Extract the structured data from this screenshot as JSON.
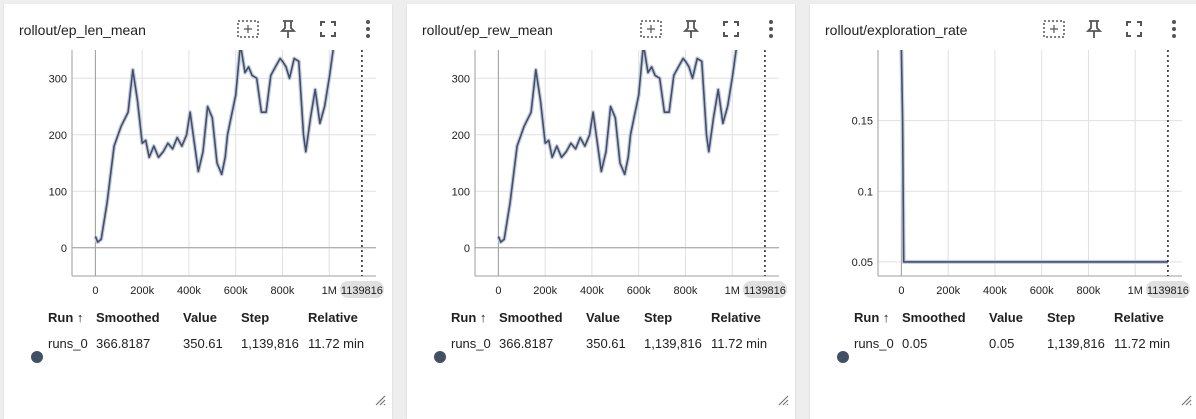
{
  "cards": [
    {
      "title": "rollout/ep_len_mean",
      "y_ticks": [
        "300",
        "200",
        "100",
        "0"
      ],
      "x_ticks": [
        "0",
        "200k",
        "400k",
        "600k",
        "800k",
        "1M"
      ],
      "step_marker": "1139816",
      "table": {
        "headers": [
          "Run ↑",
          "Smoothed",
          "Value",
          "Step",
          "Relative"
        ],
        "row": {
          "run": "runs_0",
          "smoothed": "366.8187",
          "value": "350.61",
          "step": "1,139,816",
          "relative": "11.72 min"
        }
      }
    },
    {
      "title": "rollout/ep_rew_mean",
      "y_ticks": [
        "300",
        "200",
        "100",
        "0"
      ],
      "x_ticks": [
        "0",
        "200k",
        "400k",
        "600k",
        "800k",
        "1M"
      ],
      "step_marker": "1139816",
      "table": {
        "headers": [
          "Run ↑",
          "Smoothed",
          "Value",
          "Step",
          "Relative"
        ],
        "row": {
          "run": "runs_0",
          "smoothed": "366.8187",
          "value": "350.61",
          "step": "1,139,816",
          "relative": "11.72 min"
        }
      }
    },
    {
      "title": "rollout/exploration_rate",
      "y_ticks": [
        "0.15",
        "0.1",
        "0.05"
      ],
      "x_ticks": [
        "0",
        "200k",
        "400k",
        "600k",
        "800k",
        "1M"
      ],
      "step_marker": "1139816",
      "table": {
        "headers": [
          "Run ↑",
          "Smoothed",
          "Value",
          "Step",
          "Relative"
        ],
        "row": {
          "run": "runs_0",
          "smoothed": "0.05",
          "value": "0.05",
          "step": "1,139,816",
          "relative": "11.72 min"
        }
      }
    }
  ],
  "icons": {
    "fit": "fit-to-data-icon",
    "pin": "pin-icon",
    "fullscreen": "fullscreen-icon",
    "more": "more-vert-icon",
    "resize": "resize-handle-icon"
  },
  "colors": {
    "line": "#425066",
    "line_halo": "#c5cbe0",
    "grid": "#e0e0e0",
    "axis": "#9e9e9e",
    "background": "#eeeeee"
  },
  "chart_data": [
    {
      "type": "line",
      "title": "rollout/ep_len_mean",
      "series": [
        {
          "name": "runs_0",
          "x": [
            0,
            10000,
            25000,
            50000,
            80000,
            110000,
            140000,
            160000,
            180000,
            200000,
            215000,
            230000,
            250000,
            270000,
            290000,
            310000,
            330000,
            350000,
            370000,
            390000,
            405000,
            420000,
            440000,
            460000,
            480000,
            500000,
            520000,
            540000,
            555000,
            565000,
            580000,
            600000,
            620000,
            640000,
            655000,
            670000,
            690000,
            710000,
            730000,
            750000,
            770000,
            790000,
            800000,
            815000,
            830000,
            850000,
            870000,
            890000,
            900000,
            920000,
            940000,
            960000,
            980000,
            1000000,
            1020000,
            1040000,
            1060000,
            1070000
          ],
          "values": [
            20,
            10,
            15,
            80,
            180,
            215,
            240,
            315,
            260,
            185,
            190,
            160,
            180,
            160,
            170,
            185,
            175,
            195,
            180,
            200,
            240,
            195,
            135,
            170,
            250,
            230,
            150,
            130,
            160,
            200,
            230,
            270,
            360,
            310,
            320,
            305,
            300,
            240,
            240,
            305,
            320,
            335,
            330,
            320,
            300,
            335,
            330,
            200,
            170,
            230,
            280,
            220,
            250,
            300,
            360,
            360,
            360,
            360
          ]
        }
      ],
      "x_ticks": [
        "0",
        "200k",
        "400k",
        "600k",
        "800k",
        "1M"
      ],
      "y_ticks": [
        "0",
        "100",
        "200",
        "300"
      ],
      "xlim": [
        -100000,
        1200000
      ],
      "ylim": [
        -50,
        350
      ],
      "step_marker": 1139816
    },
    {
      "type": "line",
      "title": "rollout/ep_rew_mean",
      "series": [
        {
          "name": "runs_0",
          "x": [
            0,
            10000,
            25000,
            50000,
            80000,
            110000,
            140000,
            160000,
            180000,
            200000,
            215000,
            230000,
            250000,
            270000,
            290000,
            310000,
            330000,
            350000,
            370000,
            390000,
            405000,
            420000,
            440000,
            460000,
            480000,
            500000,
            520000,
            540000,
            555000,
            565000,
            580000,
            600000,
            620000,
            640000,
            655000,
            670000,
            690000,
            710000,
            730000,
            750000,
            770000,
            790000,
            800000,
            815000,
            830000,
            850000,
            870000,
            890000,
            900000,
            920000,
            940000,
            960000,
            980000,
            1000000,
            1020000,
            1040000,
            1060000,
            1070000
          ],
          "values": [
            20,
            10,
            15,
            80,
            180,
            215,
            240,
            315,
            260,
            185,
            190,
            160,
            180,
            160,
            170,
            185,
            175,
            195,
            180,
            200,
            240,
            195,
            135,
            170,
            250,
            230,
            150,
            130,
            160,
            200,
            230,
            270,
            360,
            310,
            320,
            305,
            300,
            240,
            240,
            305,
            320,
            335,
            330,
            320,
            300,
            335,
            330,
            200,
            170,
            230,
            280,
            220,
            250,
            300,
            360,
            360,
            360,
            360
          ]
        }
      ],
      "x_ticks": [
        "0",
        "200k",
        "400k",
        "600k",
        "800k",
        "1M"
      ],
      "y_ticks": [
        "0",
        "100",
        "200",
        "300"
      ],
      "xlim": [
        -100000,
        1200000
      ],
      "ylim": [
        -50,
        350
      ],
      "step_marker": 1139816
    },
    {
      "type": "line",
      "title": "rollout/exploration_rate",
      "series": [
        {
          "name": "runs_0",
          "x": [
            0,
            5000,
            10000,
            1139816
          ],
          "values": [
            0.2,
            0.15,
            0.05,
            0.05
          ]
        }
      ],
      "x_ticks": [
        "0",
        "200k",
        "400k",
        "600k",
        "800k",
        "1M"
      ],
      "y_ticks": [
        "0.05",
        "0.1",
        "0.15"
      ],
      "xlim": [
        -100000,
        1200000
      ],
      "ylim": [
        0.04,
        0.2
      ],
      "step_marker": 1139816
    }
  ]
}
